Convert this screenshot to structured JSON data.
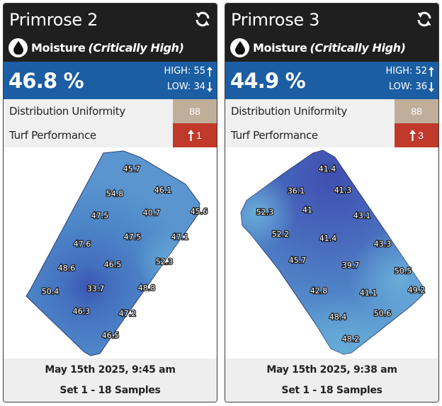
{
  "cards": [
    {
      "title": "Primrose 2",
      "metric": "Moisture",
      "status": "(Critically High)",
      "value": "46.8 %",
      "high": "HIGH: 55",
      "low": "LOW: 34",
      "du_label": "Distribution Uniformity",
      "du_value": "88",
      "turf_label": "Turf Performance",
      "turf_value": "1",
      "date": "May 15th 2025, 9:45 am",
      "set": "Set 1 - 18 Samples",
      "samples": [
        "45.7",
        "54.8",
        "46.1",
        "47.5",
        "40.7",
        "45.6",
        "47.5",
        "47.1",
        "47.6",
        "46.5",
        "52.3",
        "48.6",
        "33.7",
        "48.8",
        "50.4",
        "46.3",
        "47.2",
        "46.5"
      ]
    },
    {
      "title": "Primrose 3",
      "metric": "Moisture",
      "status": "(Critically High)",
      "value": "44.9 %",
      "high": "HIGH: 52",
      "low": "LOW: 36",
      "du_label": "Distribution Uniformity",
      "du_value": "88",
      "turf_label": "Turf Performance",
      "turf_value": "3",
      "date": "May 15th 2025, 9:38 am",
      "set": "Set 1 - 18 Samples",
      "samples": [
        "41.4",
        "36.1",
        "41.3",
        "52.3",
        "41",
        "43.1",
        "52.2",
        "41.4",
        "43.3",
        "45.7",
        "39.7",
        "50.5",
        "42.8",
        "41.1",
        "49.2",
        "48.4",
        "50.6",
        "48.2"
      ]
    }
  ],
  "colors": {
    "header_bg": "#1f1f1f",
    "value_bar": "#1b5ea3",
    "du_badge": "#bfae99",
    "turf_badge": "#c0392b",
    "footer_bg": "#eeeeee"
  },
  "icons": [
    "refresh-icon",
    "water-drop-icon",
    "arrow-up-icon",
    "arrow-down-icon"
  ]
}
